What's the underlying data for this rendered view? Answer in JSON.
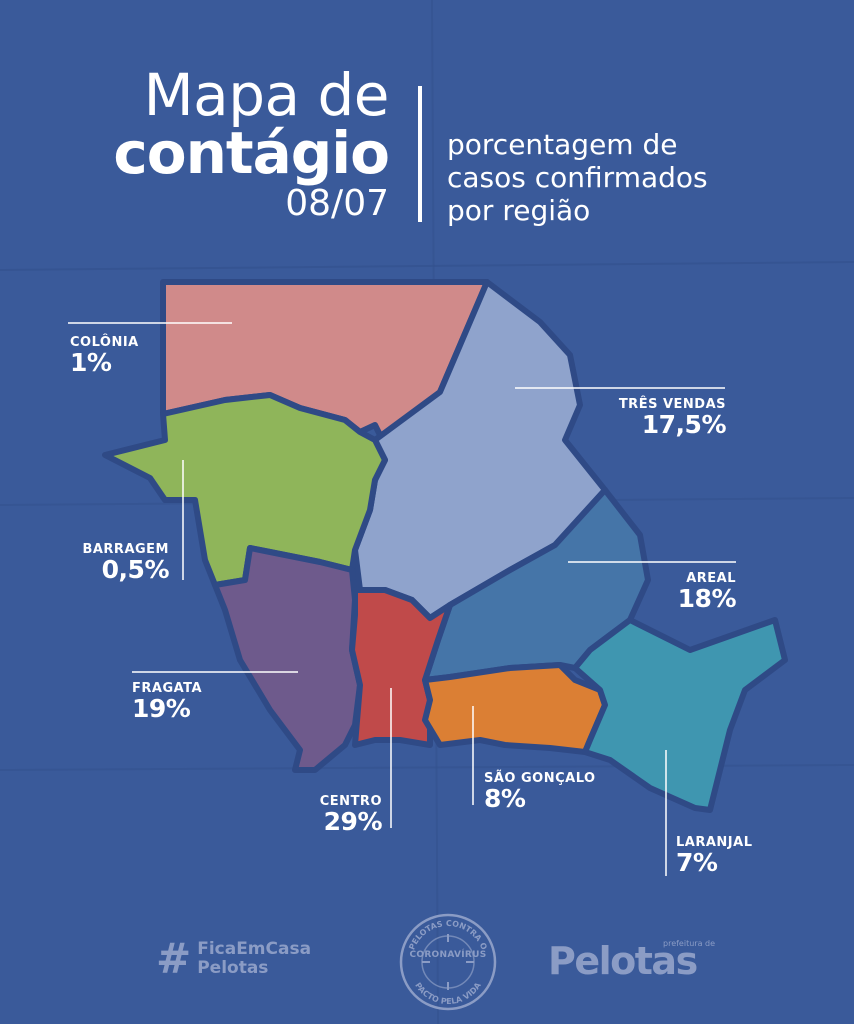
{
  "header": {
    "title_line1": "Mapa de",
    "title_line2": "contágio",
    "date": "08/07",
    "subtitle_lines": [
      "porcentagem de",
      "casos confirmados",
      "por região"
    ]
  },
  "map": {
    "regions": [
      {
        "name": "COLÔNIA",
        "value": "1%",
        "percent": 1,
        "color": "#d08a8a"
      },
      {
        "name": "TRÊS VENDAS",
        "value": "17,5%",
        "percent": 17.5,
        "color": "#8fa3cc"
      },
      {
        "name": "BARRAGEM",
        "value": "0,5%",
        "percent": 0.5,
        "color": "#8fb55a"
      },
      {
        "name": "AREAL",
        "value": "18%",
        "percent": 18,
        "color": "#4575a8"
      },
      {
        "name": "FRAGATA",
        "value": "19%",
        "percent": 19,
        "color": "#6e5a8c"
      },
      {
        "name": "CENTRO",
        "value": "29%",
        "percent": 29,
        "color": "#c04a4a"
      },
      {
        "name": "SÃO GONÇALO",
        "value": "8%",
        "percent": 8,
        "color": "#db7f34"
      },
      {
        "name": "LARANJAL",
        "value": "7%",
        "percent": 7,
        "color": "#3f96b0"
      }
    ],
    "border_color": "#2f4a86"
  },
  "footer": {
    "hashtag_symbol": "#",
    "hashtag_line1": "FicaEmCasa",
    "hashtag_line2": "Pelotas",
    "seal_top": "PELOTAS CONTRA O",
    "seal_middle": "CORONAVÍRUS",
    "seal_bottom": "PACTO PELA VIDA",
    "brand_small": "prefeitura de",
    "brand_name": "Pelotas"
  }
}
